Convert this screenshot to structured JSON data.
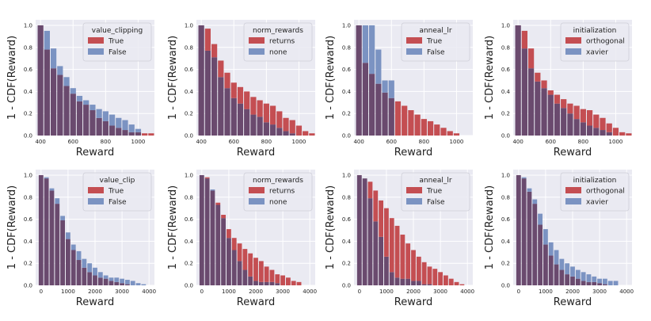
{
  "figure": {
    "colors": {
      "background": "#eaeaf2",
      "grid": "#ffffff",
      "series_a": "#c44e52",
      "series_b": "#7b93c2",
      "overlap": "#6a4a6e",
      "text": "#222222"
    }
  },
  "chart_data": [
    {
      "type": "bar",
      "xlabel": "Reward",
      "ylabel": "1 - CDF(Reward)",
      "xlim": [
        370,
        1100
      ],
      "ylim": [
        0,
        1.05
      ],
      "xticks": [
        400,
        600,
        800,
        1000
      ],
      "yticks": [
        0.0,
        0.2,
        0.4,
        0.6,
        0.8,
        1.0
      ],
      "legend_title": "value_clipping",
      "legend_position": "top-right",
      "bin_start": 380,
      "bin_width": 40,
      "series": [
        {
          "name": "True",
          "values": [
            1.0,
            0.78,
            0.61,
            0.55,
            0.45,
            0.38,
            0.31,
            0.28,
            0.23,
            0.16,
            0.13,
            0.09,
            0.07,
            0.05,
            0.03,
            0.03,
            0.02,
            0.02
          ]
        },
        {
          "name": "False",
          "values": [
            1.0,
            0.95,
            0.79,
            0.63,
            0.53,
            0.43,
            0.36,
            0.32,
            0.28,
            0.24,
            0.22,
            0.19,
            0.16,
            0.14,
            0.1,
            0.06,
            0.0,
            0.0
          ]
        }
      ]
    },
    {
      "type": "bar",
      "xlabel": "Reward",
      "ylabel": "1 - CDF(Reward)",
      "xlim": [
        370,
        1100
      ],
      "ylim": [
        0,
        1.05
      ],
      "xticks": [
        400,
        600,
        800,
        1000
      ],
      "yticks": [
        0.0,
        0.2,
        0.4,
        0.6,
        0.8,
        1.0
      ],
      "legend_title": "norm_rewards",
      "legend_position": "top-right",
      "bin_start": 380,
      "bin_width": 40,
      "series": [
        {
          "name": "returns",
          "values": [
            1.0,
            0.97,
            0.83,
            0.68,
            0.57,
            0.48,
            0.44,
            0.4,
            0.35,
            0.32,
            0.29,
            0.27,
            0.22,
            0.16,
            0.14,
            0.09,
            0.04,
            0.02
          ]
        },
        {
          "name": "none",
          "values": [
            1.0,
            0.77,
            0.71,
            0.53,
            0.43,
            0.34,
            0.29,
            0.24,
            0.19,
            0.17,
            0.12,
            0.1,
            0.07,
            0.04,
            0.02,
            0.0,
            0.0,
            0.0
          ]
        }
      ]
    },
    {
      "type": "bar",
      "xlabel": "Reward",
      "ylabel": "1 - CDF(Reward)",
      "xlim": [
        370,
        1100
      ],
      "ylim": [
        0,
        1.05
      ],
      "xticks": [
        400,
        600,
        800,
        1000
      ],
      "yticks": [
        0.0,
        0.2,
        0.4,
        0.6,
        0.8,
        1.0
      ],
      "legend_title": "anneal_lr",
      "legend_position": "top-right",
      "bin_start": 380,
      "bin_width": 40,
      "series": [
        {
          "name": "True",
          "values": [
            1.0,
            0.66,
            0.56,
            0.47,
            0.39,
            0.34,
            0.31,
            0.27,
            0.23,
            0.19,
            0.15,
            0.13,
            0.1,
            0.07,
            0.04,
            0.02,
            0.0,
            0.0
          ]
        },
        {
          "name": "False",
          "values": [
            1.0,
            1.0,
            1.0,
            0.78,
            0.5,
            0.5,
            0.0,
            0.0,
            0.0,
            0.0,
            0.0,
            0.0,
            0.0,
            0.0,
            0.0,
            0.0,
            0.0,
            0.0
          ]
        }
      ]
    },
    {
      "type": "bar",
      "xlabel": "Reward",
      "ylabel": "1 - CDF(Reward)",
      "xlim": [
        370,
        1100
      ],
      "ylim": [
        0,
        1.05
      ],
      "xticks": [
        400,
        600,
        800,
        1000
      ],
      "yticks": [
        0.0,
        0.2,
        0.4,
        0.6,
        0.8,
        1.0
      ],
      "legend_title": "initialization",
      "legend_position": "top-right",
      "bin_start": 380,
      "bin_width": 40,
      "series": [
        {
          "name": "orthogonal",
          "values": [
            1.0,
            0.95,
            0.79,
            0.57,
            0.5,
            0.41,
            0.37,
            0.33,
            0.29,
            0.27,
            0.24,
            0.23,
            0.19,
            0.16,
            0.11,
            0.07,
            0.03,
            0.02
          ]
        },
        {
          "name": "xavier",
          "values": [
            1.0,
            0.79,
            0.61,
            0.49,
            0.43,
            0.37,
            0.29,
            0.25,
            0.2,
            0.15,
            0.12,
            0.09,
            0.07,
            0.05,
            0.03,
            0.0,
            0.0,
            0.0
          ]
        }
      ]
    },
    {
      "type": "bar",
      "xlabel": "Reward",
      "ylabel": "1 - CDF(Reward)",
      "xlim": [
        -200,
        4200
      ],
      "ylim": [
        0,
        1.05
      ],
      "xticks": [
        0,
        1000,
        2000,
        3000,
        4000
      ],
      "yticks": [
        0.0,
        0.2,
        0.4,
        0.6,
        0.8,
        1.0
      ],
      "legend_title": "value_clip",
      "legend_position": "top-right",
      "bin_start": -100,
      "bin_width": 200,
      "series": [
        {
          "name": "True",
          "values": [
            1.0,
            0.97,
            0.86,
            0.74,
            0.59,
            0.42,
            0.32,
            0.23,
            0.16,
            0.12,
            0.09,
            0.07,
            0.06,
            0.04,
            0.03,
            0.02,
            0.01,
            0.0,
            0.0,
            0.0
          ]
        },
        {
          "name": "False",
          "values": [
            1.0,
            0.98,
            0.88,
            0.79,
            0.63,
            0.48,
            0.37,
            0.31,
            0.24,
            0.2,
            0.16,
            0.12,
            0.09,
            0.07,
            0.07,
            0.06,
            0.05,
            0.04,
            0.02,
            0.01
          ]
        }
      ]
    },
    {
      "type": "bar",
      "xlabel": "Reward",
      "ylabel": "1 - CDF(Reward)",
      "xlim": [
        -200,
        4200
      ],
      "ylim": [
        0,
        1.05
      ],
      "xticks": [
        0,
        1000,
        2000,
        3000,
        4000
      ],
      "yticks": [
        0.0,
        0.2,
        0.4,
        0.6,
        0.8,
        1.0
      ],
      "legend_title": "norm_rewards",
      "legend_position": "top-right",
      "bin_start": -100,
      "bin_width": 200,
      "series": [
        {
          "name": "returns",
          "values": [
            1.0,
            0.98,
            0.86,
            0.75,
            0.64,
            0.51,
            0.43,
            0.38,
            0.33,
            0.29,
            0.25,
            0.22,
            0.17,
            0.14,
            0.1,
            0.09,
            0.07,
            0.04,
            0.03,
            0.0
          ]
        },
        {
          "name": "none",
          "values": [
            1.0,
            0.97,
            0.87,
            0.73,
            0.61,
            0.43,
            0.32,
            0.22,
            0.14,
            0.08,
            0.04,
            0.03,
            0.03,
            0.03,
            0.02,
            0.0,
            0.0,
            0.0,
            0.0,
            0.0
          ]
        }
      ]
    },
    {
      "type": "bar",
      "xlabel": "Reward",
      "ylabel": "1 - CDF(Reward)",
      "xlim": [
        -200,
        4200
      ],
      "ylim": [
        0,
        1.05
      ],
      "xticks": [
        0,
        1000,
        2000,
        3000,
        4000
      ],
      "yticks": [
        0.0,
        0.2,
        0.4,
        0.6,
        0.8,
        1.0
      ],
      "legend_title": "anneal_lr",
      "legend_position": "top-right",
      "bin_start": -100,
      "bin_width": 200,
      "series": [
        {
          "name": "True",
          "values": [
            1.0,
            0.97,
            0.94,
            0.86,
            0.77,
            0.7,
            0.61,
            0.54,
            0.46,
            0.38,
            0.32,
            0.26,
            0.21,
            0.17,
            0.15,
            0.12,
            0.09,
            0.06,
            0.03,
            0.01
          ]
        },
        {
          "name": "False",
          "values": [
            1.0,
            0.97,
            0.79,
            0.58,
            0.44,
            0.26,
            0.12,
            0.07,
            0.06,
            0.06,
            0.04,
            0.04,
            0.01,
            0.01,
            0.0,
            0.0,
            0.0,
            0.0,
            0.0,
            0.0
          ]
        }
      ]
    },
    {
      "type": "bar",
      "xlabel": "Reward",
      "ylabel": "1 - CDF(Reward)",
      "xlim": [
        -200,
        4200
      ],
      "ylim": [
        0,
        1.05
      ],
      "xticks": [
        0,
        1000,
        2000,
        3000,
        4000
      ],
      "yticks": [
        0.0,
        0.2,
        0.4,
        0.6,
        0.8,
        1.0
      ],
      "legend_title": "initialization",
      "legend_position": "top-right",
      "bin_start": -100,
      "bin_width": 200,
      "series": [
        {
          "name": "orthogonal",
          "values": [
            1.0,
            0.97,
            0.85,
            0.74,
            0.55,
            0.37,
            0.27,
            0.19,
            0.14,
            0.1,
            0.08,
            0.06,
            0.04,
            0.03,
            0.03,
            0.02,
            0.01,
            0.0,
            0.0,
            0.0
          ]
        },
        {
          "name": "xavier",
          "values": [
            1.0,
            0.98,
            0.88,
            0.78,
            0.65,
            0.51,
            0.39,
            0.32,
            0.24,
            0.2,
            0.17,
            0.14,
            0.12,
            0.1,
            0.08,
            0.06,
            0.06,
            0.04,
            0.04,
            0.0
          ]
        }
      ]
    }
  ]
}
